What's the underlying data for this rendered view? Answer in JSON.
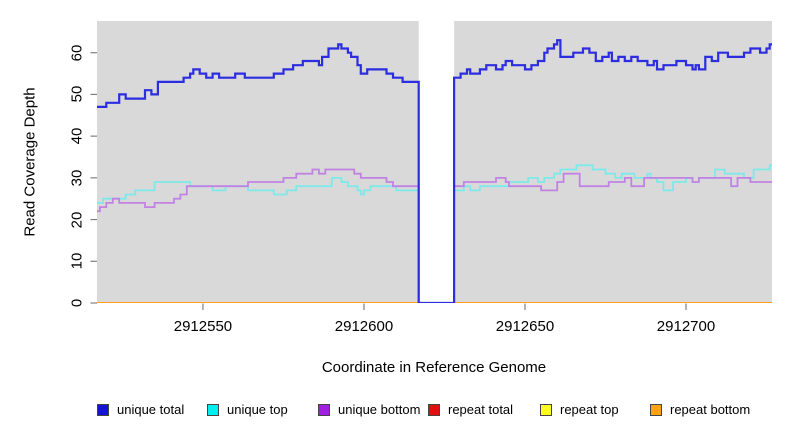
{
  "chart_data": {
    "type": "line",
    "step": true,
    "title": "",
    "xlabel": "Coordinate in Reference Genome",
    "ylabel": "Read Coverage Depth",
    "xlim": [
      2912517.1,
      2912726.7
    ],
    "ylim": [
      0,
      67.6
    ],
    "x_ticks": [
      2912550,
      2912600,
      2912650,
      2912700
    ],
    "y_ticks": [
      0,
      10,
      20,
      30,
      40,
      50,
      60
    ],
    "panel_bg": "#d9d9d9",
    "page_bg": "#ffffff",
    "tick_color": "#808080",
    "grid": false,
    "legend_position": "bottom",
    "gap_region": [
      2912617,
      2912628
    ],
    "series": [
      {
        "name": "repeat total",
        "color": "#dd1111",
        "legend_color": "#e01010",
        "width": 1.8,
        "points": [
          [
            2912517,
            0
          ],
          [
            2912617,
            0
          ],
          null,
          [
            2912628,
            0
          ],
          [
            2912727,
            0
          ]
        ]
      },
      {
        "name": "repeat top",
        "color": "#ffff22",
        "legend_color": "#ffff20",
        "width": 1.8,
        "points": [
          [
            2912517,
            0
          ],
          [
            2912617,
            0
          ],
          null,
          [
            2912628,
            0
          ],
          [
            2912727,
            0
          ]
        ]
      },
      {
        "name": "repeat bottom",
        "color": "#ffa114",
        "legend_color": "#ffa114",
        "width": 2,
        "points": [
          [
            2912517,
            0
          ],
          [
            2912617,
            0
          ],
          null,
          [
            2912628,
            0
          ],
          [
            2912727,
            0
          ]
        ]
      },
      {
        "name": "unique top",
        "color": "#7de9e9",
        "legend_color": "#00eeee",
        "width": 1.8,
        "points": [
          [
            2912517,
            24
          ],
          [
            2912519,
            25
          ],
          [
            2912524,
            25
          ],
          [
            2912526,
            26
          ],
          [
            2912529,
            27
          ],
          [
            2912534,
            27
          ],
          [
            2912535,
            29
          ],
          [
            2912545,
            29
          ],
          [
            2912546,
            28
          ],
          [
            2912551,
            28
          ],
          [
            2912553,
            27
          ],
          [
            2912557,
            28
          ],
          [
            2912561,
            28
          ],
          [
            2912564,
            27
          ],
          [
            2912572,
            26
          ],
          [
            2912576,
            27
          ],
          [
            2912579,
            28
          ],
          [
            2912587,
            28
          ],
          [
            2912590,
            30
          ],
          [
            2912592,
            30
          ],
          [
            2912593,
            29
          ],
          [
            2912595,
            28
          ],
          [
            2912598,
            27
          ],
          [
            2912599,
            26
          ],
          [
            2912600,
            27
          ],
          [
            2912602,
            28
          ],
          [
            2912610,
            27
          ],
          [
            2912617,
            0
          ],
          null,
          [
            2912628,
            0
          ],
          [
            2912628,
            27
          ],
          [
            2912631,
            28
          ],
          [
            2912633,
            27
          ],
          [
            2912636,
            28
          ],
          [
            2912641,
            28
          ],
          [
            2912645,
            29
          ],
          [
            2912650,
            29
          ],
          [
            2912651,
            30
          ],
          [
            2912654,
            29
          ],
          [
            2912656,
            30
          ],
          [
            2912659,
            31
          ],
          [
            2912661,
            32
          ],
          [
            2912665,
            32
          ],
          [
            2912666,
            33
          ],
          [
            2912669,
            33
          ],
          [
            2912671,
            32
          ],
          [
            2912673,
            32
          ],
          [
            2912675,
            31
          ],
          [
            2912678,
            30
          ],
          [
            2912680,
            31
          ],
          [
            2912684,
            30
          ],
          [
            2912688,
            31
          ],
          [
            2912689,
            30
          ],
          [
            2912691,
            29
          ],
          [
            2912693,
            27
          ],
          [
            2912696,
            29
          ],
          [
            2912700,
            30
          ],
          [
            2912702,
            29
          ],
          [
            2912704,
            30
          ],
          [
            2912706,
            30
          ],
          [
            2912709,
            32
          ],
          [
            2912712,
            31
          ],
          [
            2912716,
            31
          ],
          [
            2912718,
            30
          ],
          [
            2912721,
            32
          ],
          [
            2912724,
            32
          ],
          [
            2912726,
            33
          ],
          [
            2912727,
            33
          ]
        ]
      },
      {
        "name": "unique bottom",
        "color": "#c183e3",
        "legend_color": "#a11fe0",
        "width": 1.8,
        "points": [
          [
            2912517,
            22
          ],
          [
            2912518,
            23
          ],
          [
            2912520,
            24
          ],
          [
            2912522,
            25
          ],
          [
            2912524,
            24
          ],
          [
            2912532,
            23
          ],
          [
            2912535,
            24
          ],
          [
            2912541,
            25
          ],
          [
            2912543,
            26
          ],
          [
            2912545,
            28
          ],
          [
            2912561,
            28
          ],
          [
            2912564,
            29
          ],
          [
            2912575,
            30
          ],
          [
            2912579,
            31
          ],
          [
            2912584,
            32
          ],
          [
            2912586,
            31
          ],
          [
            2912588,
            32
          ],
          [
            2912597,
            31
          ],
          [
            2912599,
            30
          ],
          [
            2912606,
            30
          ],
          [
            2912607,
            29
          ],
          [
            2912609,
            28
          ],
          [
            2912613,
            28
          ],
          [
            2912617,
            0
          ],
          null,
          [
            2912628,
            0
          ],
          [
            2912628,
            28
          ],
          [
            2912631,
            29
          ],
          [
            2912640,
            29
          ],
          [
            2912641,
            30
          ],
          [
            2912644,
            29
          ],
          [
            2912645,
            28
          ],
          [
            2912650,
            28
          ],
          [
            2912655,
            27
          ],
          [
            2912660,
            29
          ],
          [
            2912662,
            31
          ],
          [
            2912666,
            31
          ],
          [
            2912667,
            28
          ],
          [
            2912672,
            28
          ],
          [
            2912676,
            29
          ],
          [
            2912681,
            30
          ],
          [
            2912683,
            28
          ],
          [
            2912685,
            28
          ],
          [
            2912687,
            30
          ],
          [
            2912694,
            30
          ],
          [
            2912696,
            30
          ],
          [
            2912702,
            29
          ],
          [
            2912704,
            30
          ],
          [
            2912711,
            30
          ],
          [
            2912714,
            28
          ],
          [
            2912716,
            30
          ],
          [
            2912720,
            29
          ],
          [
            2912727,
            29
          ]
        ]
      },
      {
        "name": "unique total",
        "color": "#2c2ce0",
        "legend_color": "#1414d6",
        "width": 2.2,
        "points": [
          [
            2912517,
            47
          ],
          [
            2912520,
            48
          ],
          [
            2912523,
            48
          ],
          [
            2912524,
            50
          ],
          [
            2912526,
            49
          ],
          [
            2912531,
            49
          ],
          [
            2912532,
            51
          ],
          [
            2912534,
            50
          ],
          [
            2912536,
            53
          ],
          [
            2912543,
            53
          ],
          [
            2912544,
            54
          ],
          [
            2912546,
            55
          ],
          [
            2912547,
            56
          ],
          [
            2912549,
            55
          ],
          [
            2912551,
            54
          ],
          [
            2912553,
            55
          ],
          [
            2912555,
            54
          ],
          [
            2912560,
            55
          ],
          [
            2912563,
            54
          ],
          [
            2912570,
            54
          ],
          [
            2912572,
            55
          ],
          [
            2912575,
            56
          ],
          [
            2912578,
            57
          ],
          [
            2912581,
            58
          ],
          [
            2912584,
            58
          ],
          [
            2912586,
            57
          ],
          [
            2912587,
            59
          ],
          [
            2912589,
            61
          ],
          [
            2912592,
            62
          ],
          [
            2912593,
            61
          ],
          [
            2912595,
            60
          ],
          [
            2912596,
            59
          ],
          [
            2912598,
            57
          ],
          [
            2912599,
            55
          ],
          [
            2912601,
            56
          ],
          [
            2912606,
            56
          ],
          [
            2912607,
            55
          ],
          [
            2912609,
            54
          ],
          [
            2912612,
            53
          ],
          [
            2912617,
            0
          ],
          [
            2912628,
            54
          ],
          [
            2912630,
            55
          ],
          [
            2912632,
            56
          ],
          [
            2912633,
            55
          ],
          [
            2912636,
            56
          ],
          [
            2912638,
            57
          ],
          [
            2912641,
            56
          ],
          [
            2912643,
            57
          ],
          [
            2912644,
            58
          ],
          [
            2912646,
            57
          ],
          [
            2912650,
            56
          ],
          [
            2912652,
            57
          ],
          [
            2912654,
            58
          ],
          [
            2912656,
            60
          ],
          [
            2912657,
            61
          ],
          [
            2912659,
            62
          ],
          [
            2912660,
            63
          ],
          [
            2912661,
            59
          ],
          [
            2912665,
            60
          ],
          [
            2912668,
            61
          ],
          [
            2912670,
            60
          ],
          [
            2912672,
            58
          ],
          [
            2912674,
            59
          ],
          [
            2912676,
            60
          ],
          [
            2912677,
            58
          ],
          [
            2912679,
            59
          ],
          [
            2912681,
            58
          ],
          [
            2912683,
            59
          ],
          [
            2912685,
            58
          ],
          [
            2912688,
            57
          ],
          [
            2912690,
            58
          ],
          [
            2912691,
            56
          ],
          [
            2912693,
            57
          ],
          [
            2912697,
            58
          ],
          [
            2912700,
            57
          ],
          [
            2912702,
            56
          ],
          [
            2912703,
            57
          ],
          [
            2912704,
            56
          ],
          [
            2912706,
            59
          ],
          [
            2912708,
            58
          ],
          [
            2912710,
            60
          ],
          [
            2912713,
            59
          ],
          [
            2912718,
            60
          ],
          [
            2912720,
            61
          ],
          [
            2912723,
            60
          ],
          [
            2912725,
            61
          ],
          [
            2912726,
            62
          ],
          [
            2912727,
            62
          ]
        ]
      }
    ],
    "legend": [
      {
        "label": "unique total",
        "color": "#1414d6"
      },
      {
        "label": "unique top",
        "color": "#00eeee"
      },
      {
        "label": "unique bottom",
        "color": "#a11fe0"
      },
      {
        "label": "repeat total",
        "color": "#e01010"
      },
      {
        "label": "repeat top",
        "color": "#ffff20"
      },
      {
        "label": "repeat bottom",
        "color": "#ffa114"
      }
    ]
  }
}
